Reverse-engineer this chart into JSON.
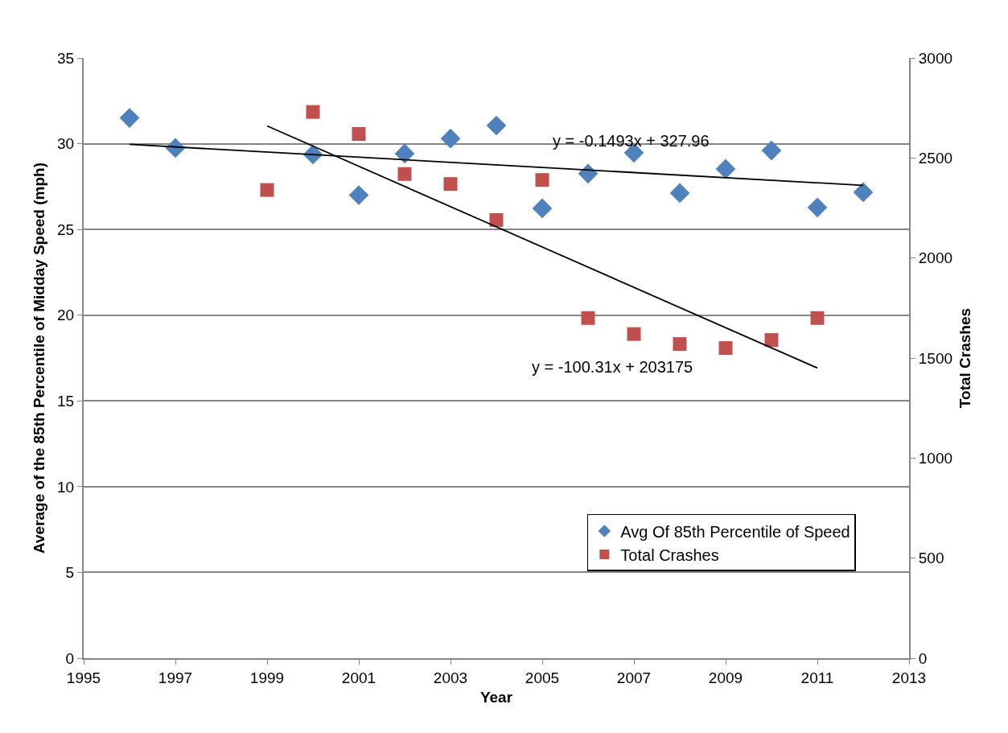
{
  "chart_data": {
    "type": "scatter",
    "xlabel": "Year",
    "ylabel": "Average of the 85th Percentile of Midday Speed (mph)",
    "y2label": "Total Crashes",
    "x": [
      1996,
      1997,
      1999,
      2000,
      2001,
      2002,
      2003,
      2004,
      2005,
      2006,
      2007,
      2008,
      2009,
      2010,
      2011,
      2012
    ],
    "series": [
      {
        "name": "Avg Of 85th Percentile of Speed",
        "color": "#4f81bd",
        "marker": "diamond",
        "values": [
          31.5,
          29.75,
          null,
          29.37,
          27.0,
          29.42,
          30.3,
          31.06,
          26.23,
          28.25,
          29.47,
          27.12,
          28.53,
          29.6,
          26.28,
          27.17
        ]
      },
      {
        "name": "Total Crashes",
        "color": "#c0504d",
        "marker": "square",
        "axis": "y2",
        "values": [
          null,
          null,
          2340,
          2730,
          2620,
          2420,
          2370,
          2190,
          2390,
          1700,
          1620,
          1570,
          1550,
          1590,
          1700,
          null
        ]
      },
      {
        "type": "line",
        "color": "#000000",
        "x": [
          1996,
          2012
        ],
        "values": [
          29.96,
          27.57
        ]
      },
      {
        "type": "line",
        "color": "#000000",
        "axis": "y2",
        "x": [
          1999,
          2011
        ],
        "values": [
          2660,
          1450
        ]
      }
    ],
    "annotations": [
      "y = -0.1493x + 327.96",
      "y = -100.31x + 203175"
    ],
    "xlim": [
      1995,
      2013
    ],
    "xticks": [
      1995,
      1997,
      1999,
      2001,
      2003,
      2005,
      2007,
      2009,
      2011,
      2013
    ],
    "ylim": [
      0,
      35
    ],
    "yticks": [
      0,
      5,
      10,
      15,
      20,
      25,
      30,
      35
    ],
    "y2lim": [
      0,
      3000
    ],
    "y2ticks": [
      0,
      500,
      1000,
      1500,
      2000,
      2500,
      3000
    ],
    "grid": "y",
    "legend": "bottom right"
  }
}
